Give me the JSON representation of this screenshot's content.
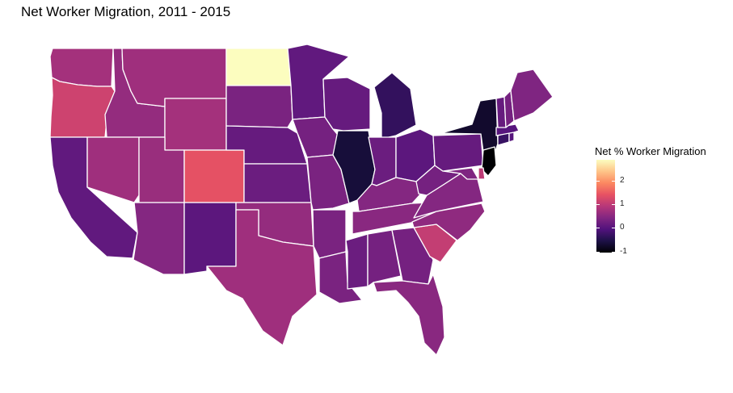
{
  "title": "Net Worker Migration, 2011 - 2015",
  "legend": {
    "title": "Net % Worker Migration",
    "ticks": [
      "2",
      "1",
      "0",
      "-1"
    ],
    "tick_values": [
      2,
      1,
      0,
      -1
    ],
    "range": [
      -1.05,
      2.9
    ],
    "colorscale": [
      "#000004",
      "#1d1147",
      "#51127c",
      "#822681",
      "#b73779",
      "#e75263",
      "#fc8961",
      "#fec488",
      "#fcfdbf"
    ]
  },
  "chart_data": {
    "type": "choropleth",
    "title": "Net Worker Migration, 2011 - 2015",
    "legend_title": "Net % Worker Migration",
    "regions": [
      {
        "id": "WA",
        "value": 0.75
      },
      {
        "id": "OR",
        "value": 1.15
      },
      {
        "id": "CA",
        "value": 0.1
      },
      {
        "id": "ID",
        "value": 0.6
      },
      {
        "id": "NV",
        "value": 0.7
      },
      {
        "id": "MT",
        "value": 0.7
      },
      {
        "id": "WY",
        "value": 0.75
      },
      {
        "id": "UT",
        "value": 0.65
      },
      {
        "id": "AZ",
        "value": 0.45
      },
      {
        "id": "CO",
        "value": 1.4
      },
      {
        "id": "NM",
        "value": 0.05
      },
      {
        "id": "ND",
        "value": 2.9
      },
      {
        "id": "SD",
        "value": 0.35
      },
      {
        "id": "NE",
        "value": 0.15
      },
      {
        "id": "KS",
        "value": 0.2
      },
      {
        "id": "OK",
        "value": 0.6
      },
      {
        "id": "TX",
        "value": 0.7
      },
      {
        "id": "MN",
        "value": 0.1
      },
      {
        "id": "IA",
        "value": 0.3
      },
      {
        "id": "MO",
        "value": 0.35
      },
      {
        "id": "AR",
        "value": 0.35
      },
      {
        "id": "LA",
        "value": 0.35
      },
      {
        "id": "WI",
        "value": 0.15
      },
      {
        "id": "IL",
        "value": -0.65
      },
      {
        "id": "MI",
        "value": -0.35
      },
      {
        "id": "IN",
        "value": 0.2
      },
      {
        "id": "OH",
        "value": 0.05
      },
      {
        "id": "KY",
        "value": 0.45
      },
      {
        "id": "TN",
        "value": 0.5
      },
      {
        "id": "MS",
        "value": 0.2
      },
      {
        "id": "AL",
        "value": 0.3
      },
      {
        "id": "GA",
        "value": 0.3
      },
      {
        "id": "FL",
        "value": 0.5
      },
      {
        "id": "SC",
        "value": 1.05
      },
      {
        "id": "NC",
        "value": 0.55
      },
      {
        "id": "VA",
        "value": 0.45
      },
      {
        "id": "WV",
        "value": 0.3
      },
      {
        "id": "PA",
        "value": 0.15
      },
      {
        "id": "NY",
        "value": -0.75
      },
      {
        "id": "NJ",
        "value": -1.05
      },
      {
        "id": "MD",
        "value": 0.4
      },
      {
        "id": "DE",
        "value": 1.0
      },
      {
        "id": "CT",
        "value": -0.3
      },
      {
        "id": "RI",
        "value": 0.0
      },
      {
        "id": "MA",
        "value": 0.0
      },
      {
        "id": "VT",
        "value": 0.15
      },
      {
        "id": "NH",
        "value": 0.3
      },
      {
        "id": "ME",
        "value": 0.4
      }
    ]
  }
}
